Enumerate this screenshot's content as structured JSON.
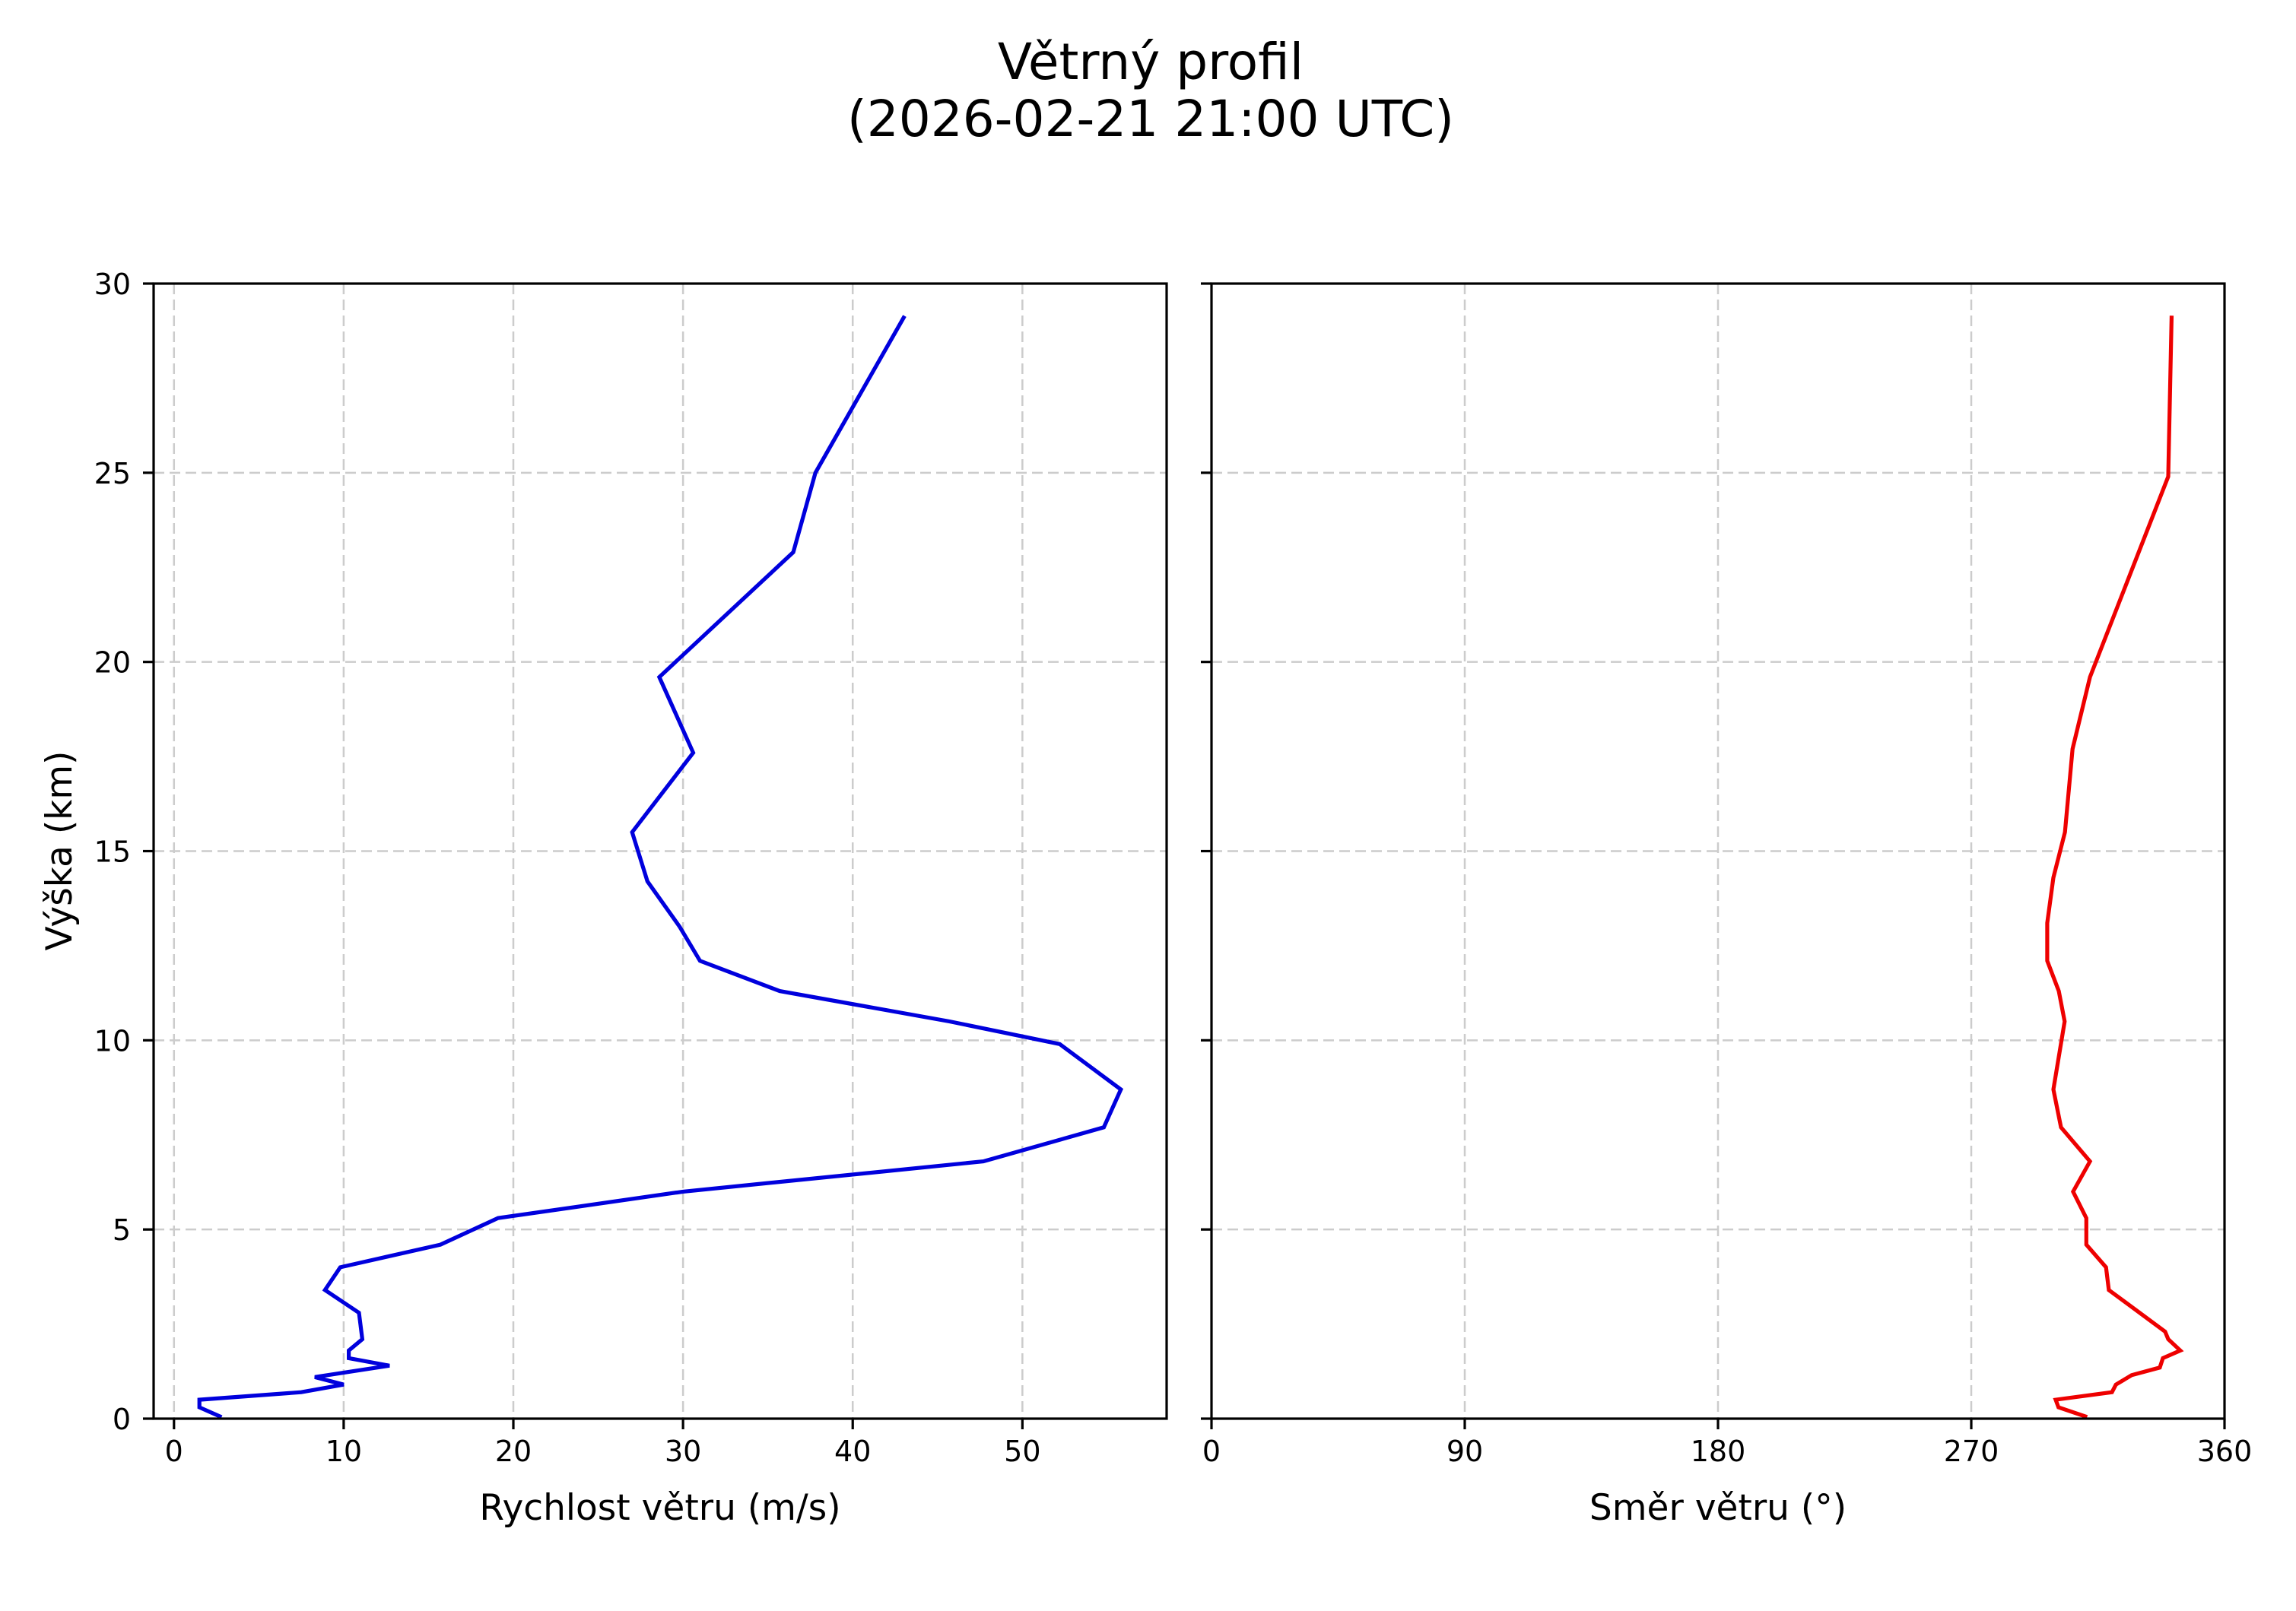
{
  "figure": {
    "title_line1": "Větrný profil",
    "title_line2": "(2026-02-21 21:00 UTC)"
  },
  "chart_data": [
    {
      "type": "line",
      "panel": "left",
      "title": "Větrný profil (2026-02-21 21:00 UTC)",
      "xlabel": "Rychlost větru (m/s)",
      "ylabel": "Výška (km)",
      "xlim": [
        -1.2,
        58.5
      ],
      "ylim": [
        0,
        30
      ],
      "xticks": [
        0,
        10,
        20,
        30,
        40,
        50
      ],
      "yticks": [
        0,
        5,
        10,
        15,
        20,
        25,
        30
      ],
      "grid": true,
      "grid_style": "dashed",
      "legend": null,
      "series": [
        {
          "name": "Rychlost větru",
          "color": "#0000dd",
          "points": [
            {
              "x": 2.7,
              "y": 0.06
            },
            {
              "x": 1.5,
              "y": 0.3
            },
            {
              "x": 1.5,
              "y": 0.5
            },
            {
              "x": 7.5,
              "y": 0.7
            },
            {
              "x": 10.0,
              "y": 0.9
            },
            {
              "x": 8.3,
              "y": 1.1
            },
            {
              "x": 12.7,
              "y": 1.4
            },
            {
              "x": 10.3,
              "y": 1.6
            },
            {
              "x": 10.3,
              "y": 1.8
            },
            {
              "x": 11.1,
              "y": 2.1
            },
            {
              "x": 10.9,
              "y": 2.8
            },
            {
              "x": 8.9,
              "y": 3.4
            },
            {
              "x": 9.8,
              "y": 4.0
            },
            {
              "x": 15.7,
              "y": 4.6
            },
            {
              "x": 19.1,
              "y": 5.3
            },
            {
              "x": 30.0,
              "y": 6.0
            },
            {
              "x": 47.7,
              "y": 6.8
            },
            {
              "x": 54.8,
              "y": 7.7
            },
            {
              "x": 55.8,
              "y": 8.7
            },
            {
              "x": 52.2,
              "y": 9.9
            },
            {
              "x": 45.7,
              "y": 10.5
            },
            {
              "x": 35.7,
              "y": 11.3
            },
            {
              "x": 31.0,
              "y": 12.1
            },
            {
              "x": 29.8,
              "y": 13.0
            },
            {
              "x": 27.9,
              "y": 14.2
            },
            {
              "x": 27.0,
              "y": 15.5
            },
            {
              "x": 30.6,
              "y": 17.6
            },
            {
              "x": 28.6,
              "y": 19.6
            },
            {
              "x": 36.5,
              "y": 22.9
            },
            {
              "x": 37.8,
              "y": 25.0
            },
            {
              "x": 43.0,
              "y": 29.1
            }
          ]
        }
      ]
    },
    {
      "type": "line",
      "panel": "right",
      "xlabel": "Směr větru (°)",
      "ylabel": "",
      "xlim": [
        0,
        360
      ],
      "ylim": [
        0,
        30
      ],
      "xticks": [
        0,
        90,
        180,
        270,
        360
      ],
      "yticks": [
        0,
        5,
        10,
        15,
        20,
        25,
        30
      ],
      "ytick_labels_visible": false,
      "grid": true,
      "grid_style": "dashed",
      "legend": null,
      "series": [
        {
          "name": "Směr větru",
          "color": "#ee0000",
          "points": [
            {
              "x": 310.5,
              "y": 0.06
            },
            {
              "x": 301.0,
              "y": 0.3
            },
            {
              "x": 300.0,
              "y": 0.5
            },
            {
              "x": 320.0,
              "y": 0.7
            },
            {
              "x": 321.4,
              "y": 0.9
            },
            {
              "x": 327.0,
              "y": 1.15
            },
            {
              "x": 337.0,
              "y": 1.35
            },
            {
              "x": 338.1,
              "y": 1.6
            },
            {
              "x": 344.3,
              "y": 1.8
            },
            {
              "x": 340.0,
              "y": 2.1
            },
            {
              "x": 338.9,
              "y": 2.3
            },
            {
              "x": 318.9,
              "y": 3.4
            },
            {
              "x": 317.9,
              "y": 4.0
            },
            {
              "x": 310.9,
              "y": 4.6
            },
            {
              "x": 310.9,
              "y": 5.3
            },
            {
              "x": 306.2,
              "y": 6.0
            },
            {
              "x": 312.2,
              "y": 6.8
            },
            {
              "x": 301.9,
              "y": 7.7
            },
            {
              "x": 299.2,
              "y": 8.7
            },
            {
              "x": 303.2,
              "y": 10.5
            },
            {
              "x": 301.1,
              "y": 11.3
            },
            {
              "x": 297.0,
              "y": 12.1
            },
            {
              "x": 297.0,
              "y": 13.1
            },
            {
              "x": 299.2,
              "y": 14.3
            },
            {
              "x": 303.3,
              "y": 15.5
            },
            {
              "x": 306.0,
              "y": 17.7
            },
            {
              "x": 312.2,
              "y": 19.6
            },
            {
              "x": 340.0,
              "y": 24.9
            },
            {
              "x": 341.2,
              "y": 29.1
            }
          ]
        }
      ]
    }
  ]
}
